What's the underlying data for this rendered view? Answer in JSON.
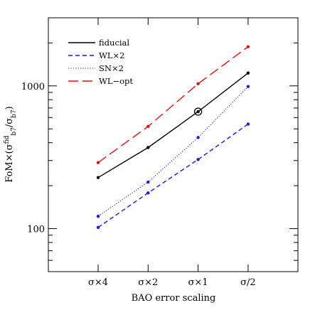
{
  "chart_data": {
    "type": "line",
    "xlabel": "BAO error scaling",
    "ylabel_parts": {
      "main": "FoM×(σ",
      "sup1": "fid",
      "sub1": "b7",
      "mid": "/σ",
      "sub2": "b7",
      "end": ")"
    },
    "yscale": "log",
    "ylim": [
      50,
      3000
    ],
    "categories": [
      "σ×4",
      "σ×2",
      "σ×1",
      "σ/2"
    ],
    "y_ticks_labeled": [
      {
        "value": 100,
        "label": "100"
      },
      {
        "value": 1000,
        "label": "1000"
      }
    ],
    "grid": false,
    "legend_position": "top-left",
    "series": [
      {
        "name": "fiducial",
        "style": "solid",
        "color": "#000000",
        "values": [
          228,
          370,
          660,
          1230
        ]
      },
      {
        "name": "WL×2",
        "style": "dashed",
        "color": "#1a1adc",
        "values": [
          102,
          178,
          305,
          540
        ]
      },
      {
        "name": "SN×2",
        "style": "dotted",
        "color": "#1a1adc",
        "values": [
          122,
          212,
          435,
          990
        ]
      },
      {
        "name": "WL−opt",
        "style": "longdash",
        "color": "#e01010",
        "values": [
          290,
          520,
          1035,
          1880
        ]
      }
    ],
    "highlight": {
      "series": "fiducial",
      "category": "σ×1"
    }
  }
}
